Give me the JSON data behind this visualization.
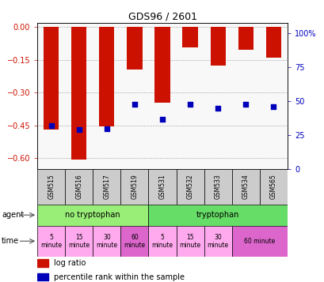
{
  "title": "GDS96 / 2601",
  "samples": [
    "GSM515",
    "GSM516",
    "GSM517",
    "GSM519",
    "GSM531",
    "GSM532",
    "GSM533",
    "GSM534",
    "GSM565"
  ],
  "log_ratio": [
    -0.47,
    -0.605,
    -0.455,
    -0.195,
    -0.345,
    -0.095,
    -0.175,
    -0.105,
    -0.14
  ],
  "percentile_rank": [
    32,
    29,
    30,
    48,
    37,
    48,
    45,
    48,
    46
  ],
  "ylim_left": [
    -0.65,
    0.02
  ],
  "ylim_right": [
    0,
    108
  ],
  "yticks_left": [
    0.0,
    -0.15,
    -0.3,
    -0.45,
    -0.6
  ],
  "yticks_right": [
    100,
    75,
    50,
    25,
    0
  ],
  "bar_color": "#cc1100",
  "dot_color": "#0000bb",
  "agent_left_color": "#99ee77",
  "agent_right_color": "#66dd66",
  "time_light_color": "#ffaaee",
  "time_dark_color": "#dd66cc",
  "sample_box_color": "#cccccc",
  "fig_bg": "#ffffff",
  "chart_bg": "#f8f8f8"
}
